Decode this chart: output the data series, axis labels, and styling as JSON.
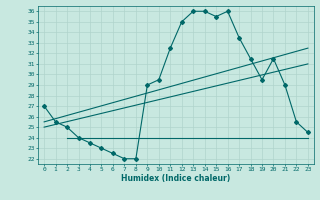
{
  "xlabel": "Humidex (Indice chaleur)",
  "background_color": "#c8e8e0",
  "grid_color": "#b0d4cc",
  "line_color": "#006868",
  "xlim": [
    -0.5,
    23.5
  ],
  "ylim": [
    21.5,
    36.5
  ],
  "xticks": [
    0,
    1,
    2,
    3,
    4,
    5,
    6,
    7,
    8,
    9,
    10,
    11,
    12,
    13,
    14,
    15,
    16,
    17,
    18,
    19,
    20,
    21,
    22,
    23
  ],
  "yticks": [
    22,
    23,
    24,
    25,
    26,
    27,
    28,
    29,
    30,
    31,
    32,
    33,
    34,
    35,
    36
  ],
  "line1_x": [
    0,
    1,
    2,
    3,
    4,
    5,
    6,
    7,
    8,
    9,
    10,
    11,
    12,
    13,
    14,
    15,
    16,
    17,
    18,
    19,
    20,
    21,
    22,
    23
  ],
  "line1_y": [
    27.0,
    25.5,
    25.0,
    24.0,
    23.5,
    23.0,
    22.5,
    22.0,
    22.0,
    29.0,
    29.5,
    32.5,
    35.0,
    36.0,
    36.0,
    35.5,
    36.0,
    33.5,
    31.5,
    29.5,
    31.5,
    29.0,
    25.5,
    24.5
  ],
  "line2_x": [
    0,
    23
  ],
  "line2_y": [
    25.5,
    32.5
  ],
  "line3_x": [
    0,
    23
  ],
  "line3_y": [
    25.0,
    31.0
  ],
  "line4_x": [
    2,
    23
  ],
  "line4_y": [
    24.0,
    24.0
  ]
}
